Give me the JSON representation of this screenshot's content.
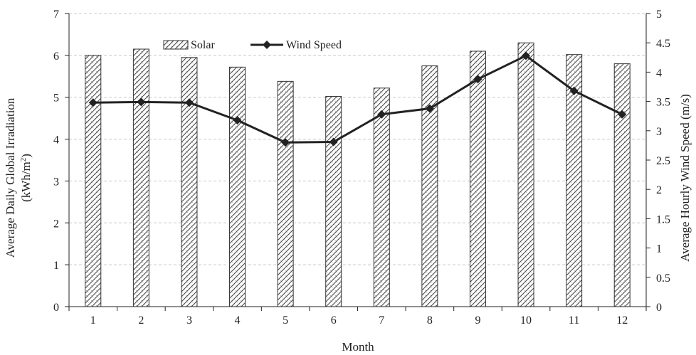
{
  "chart_data": {
    "type": "bar",
    "categories": [
      "1",
      "2",
      "3",
      "4",
      "5",
      "6",
      "7",
      "8",
      "9",
      "10",
      "11",
      "12"
    ],
    "series": [
      {
        "name": "Solar",
        "type": "bar",
        "axis": "left",
        "values": [
          6.0,
          6.15,
          5.95,
          5.72,
          5.38,
          5.02,
          5.22,
          5.75,
          6.1,
          6.3,
          6.02,
          5.8
        ]
      },
      {
        "name": "Wind Speed",
        "type": "line",
        "axis": "right",
        "marker": "diamond",
        "values": [
          3.48,
          3.49,
          3.48,
          3.18,
          2.8,
          2.81,
          3.28,
          3.38,
          3.88,
          4.28,
          3.68,
          3.28
        ]
      }
    ],
    "xlabel": "Month",
    "ylabel_left_line1": "Average Daily Global Irradiation",
    "ylabel_left_line2": "(kWh/m",
    "ylabel_left_sup": "2",
    "ylabel_left_close": ")",
    "ylabel_right": "Average Hourly Wind Speed (m/s)",
    "ylim_left": [
      0,
      7
    ],
    "ylim_right": [
      0,
      5
    ],
    "yticks_left": [
      "0",
      "1",
      "2",
      "3",
      "4",
      "5",
      "6",
      "7"
    ],
    "yticks_right": [
      "0",
      "0.5",
      "1",
      "1.5",
      "2",
      "2.5",
      "3",
      "3.5",
      "4",
      "4.5",
      "5"
    ],
    "grid": true,
    "legend_placement": "top-center",
    "colors": {
      "bar_border": "#333333",
      "bar_hatch": "#444444",
      "line": "#222222",
      "grid": "#c8c8c8"
    }
  }
}
